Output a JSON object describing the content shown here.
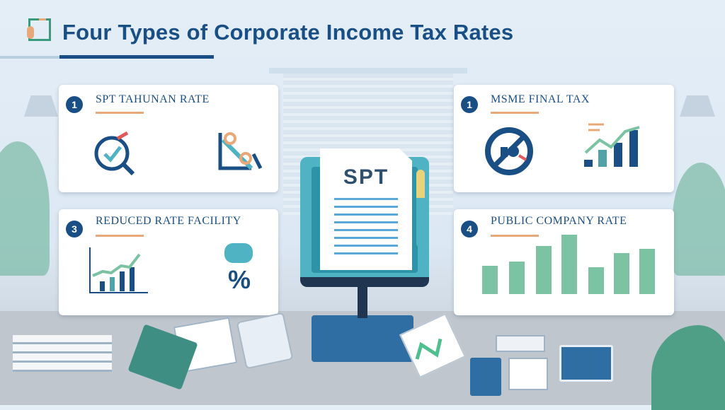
{
  "header": {
    "title": "Four Types of Corporate Income Tax Rates",
    "logo_icon": "corner-bracket-logo-icon"
  },
  "cards": [
    {
      "number": "1",
      "title": "SPT Tahunan Rate",
      "icons": [
        "target-check-magnifier-icon",
        "percent-tag-icon"
      ]
    },
    {
      "number": "1",
      "title": "MSME Final Tax",
      "icons": [
        "no-money-icon",
        "bar-chart-growth-icon"
      ]
    },
    {
      "number": "3",
      "title": "Reduced Rate Facility",
      "icons": [
        "growth-chart-icon",
        "percent-icon"
      ]
    },
    {
      "number": "4",
      "title": "Public Company Rate",
      "icons": [
        "bar-chart-icon"
      ]
    }
  ],
  "center": {
    "document_label": "SPT"
  },
  "colors": {
    "primary": "#1a4f86",
    "accent": "#e8a877",
    "green": "#7bc3a2",
    "teal": "#4fb3c4"
  }
}
